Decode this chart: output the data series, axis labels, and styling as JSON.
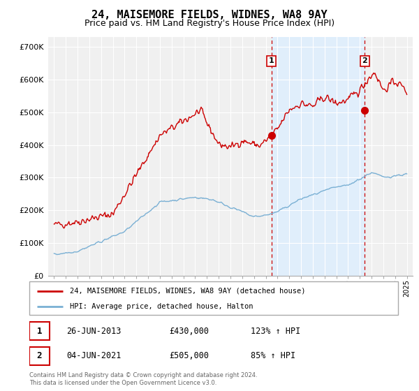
{
  "title": "24, MAISEMORE FIELDS, WIDNES, WA8 9AY",
  "subtitle": "Price paid vs. HM Land Registry's House Price Index (HPI)",
  "title_fontsize": 11,
  "subtitle_fontsize": 9,
  "ylabel_ticks": [
    "£0",
    "£100K",
    "£200K",
    "£300K",
    "£400K",
    "£500K",
    "£600K",
    "£700K"
  ],
  "ytick_values": [
    0,
    100000,
    200000,
    300000,
    400000,
    500000,
    600000,
    700000
  ],
  "ylim": [
    0,
    730000
  ],
  "xlim_start": 1994.5,
  "xlim_end": 2025.5,
  "line1_color": "#cc0000",
  "line2_color": "#7ab0d4",
  "marker1_date": 2013.48,
  "marker1_price": 430000,
  "marker1_label": "1",
  "marker2_date": 2021.42,
  "marker2_price": 505000,
  "marker2_label": "2",
  "vline_color": "#cc0000",
  "shade_color": "#ddeeff",
  "legend_line1": "24, MAISEMORE FIELDS, WIDNES, WA8 9AY (detached house)",
  "legend_line2": "HPI: Average price, detached house, Halton",
  "sale1_num": "1",
  "sale1_date": "26-JUN-2013",
  "sale1_price": "£430,000",
  "sale1_hpi": "123% ↑ HPI",
  "sale2_num": "2",
  "sale2_date": "04-JUN-2021",
  "sale2_price": "£505,000",
  "sale2_hpi": "85% ↑ HPI",
  "footnote": "Contains HM Land Registry data © Crown copyright and database right 2024.\nThis data is licensed under the Open Government Licence v3.0.",
  "bg_color": "#ffffff",
  "plot_bg_color": "#f0f0f0"
}
